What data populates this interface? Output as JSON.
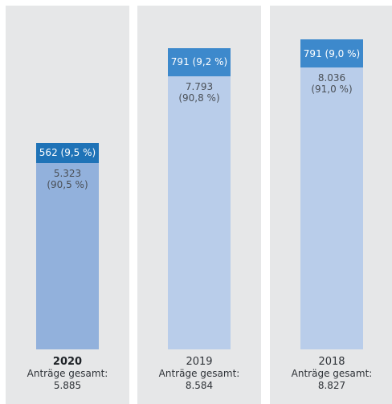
{
  "chart_data": {
    "type": "bar",
    "stacked": true,
    "categories": [
      "2020",
      "2019",
      "2018"
    ],
    "totals_label": "Anträge gesamt:",
    "groups": [
      {
        "year": "2020",
        "highlight": true,
        "total": "5.885",
        "base": {
          "value": 5323,
          "label_value": "5.323",
          "label_pct": "(90,5 %)"
        },
        "top": {
          "value": 562,
          "label": "562 (9,5 %)"
        }
      },
      {
        "year": "2019",
        "highlight": false,
        "total": "8.584",
        "base": {
          "value": 7793,
          "label_value": "7.793",
          "label_pct": "(90,8 %)"
        },
        "top": {
          "value": 791,
          "label": "791 (9,2 %)"
        }
      },
      {
        "year": "2018",
        "highlight": false,
        "total": "8.827",
        "base": {
          "value": 8036,
          "label_value": "8.036",
          "label_pct": "(91,0 %)"
        },
        "top": {
          "value": 791,
          "label": "791 (9,0 %)"
        }
      }
    ],
    "ylim": [
      0,
      9800
    ],
    "grid": false,
    "colors": {
      "panel": "#e6e7e8",
      "top_highlight": "#1f73b7",
      "top": "#3d89cc",
      "base_highlight": "#92b1dc",
      "base": "#b9cdea"
    }
  }
}
